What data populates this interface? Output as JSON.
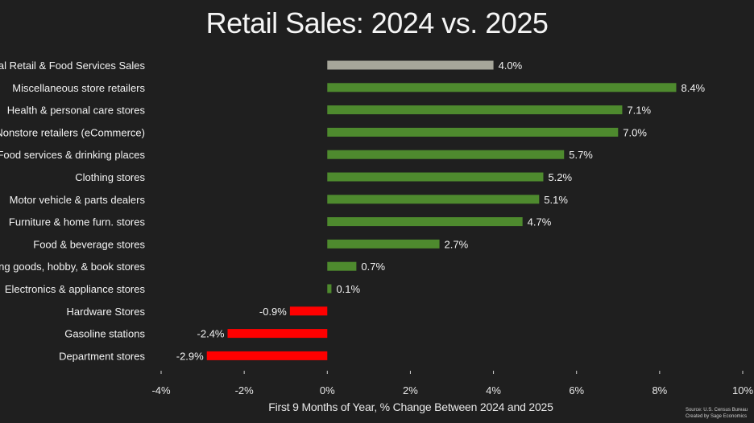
{
  "chart_data": {
    "type": "bar",
    "orientation": "horizontal",
    "title": "Retail Sales: 2024 vs. 2025",
    "xlabel": "First 9 Months of Year, % Change Between 2024 and 2025",
    "xlim": [
      -4,
      10
    ],
    "xticks": [
      -4,
      -2,
      0,
      2,
      4,
      6,
      8,
      10
    ],
    "xtick_labels": [
      "-4%",
      "-2%",
      "0%",
      "2%",
      "4%",
      "6%",
      "8%",
      "10%"
    ],
    "grid": false,
    "categories": [
      "Total Retail & Food Services Sales",
      "Miscellaneous store retailers",
      "Health & personal care stores",
      "Nonstore retailers (eCommerce)",
      "Food services & drinking places",
      "Clothing stores",
      "Motor vehicle & parts dealers",
      "Furniture & home furn. stores",
      "Food & beverage stores",
      "Sporting goods, hobby, & book stores",
      "Electronics & appliance stores",
      "Hardware Stores",
      "Gasoline stations",
      "Department stores"
    ],
    "values": [
      4.0,
      8.4,
      7.1,
      7.0,
      5.7,
      5.2,
      5.1,
      4.7,
      2.7,
      0.7,
      0.1,
      -0.9,
      -2.4,
      -2.9
    ],
    "value_labels": [
      "4.0%",
      "8.4%",
      "7.1%",
      "7.0%",
      "5.7%",
      "5.2%",
      "5.1%",
      "4.7%",
      "2.7%",
      "0.7%",
      "0.1%",
      "-0.9%",
      "-2.4%",
      "-2.9%"
    ],
    "colors": {
      "total": "#a6a69a",
      "positive": "#4e8a2e",
      "negative": "#ff0000",
      "background": "#1f1f1f",
      "text": "#f2f2f2"
    }
  },
  "source": {
    "line1": "Source: U.S. Census Bureau",
    "line2": "Created by Sage Economics"
  }
}
